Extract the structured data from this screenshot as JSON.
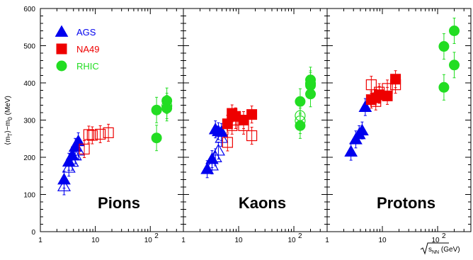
{
  "chart_data": [
    {
      "type": "scatter",
      "panel": "Pions",
      "x_scale": "log",
      "xlim": [
        1,
        400
      ],
      "ylim": [
        0,
        600
      ],
      "ylabel": "⟨m_T⟩−m_0 (MeV)",
      "yticks": [
        0,
        100,
        200,
        300,
        400,
        500,
        600
      ],
      "xticks": [
        "1",
        "10",
        "10²"
      ],
      "series": [
        {
          "name": "AGS",
          "marker": "triangle",
          "filled": true,
          "color": "#0000ee",
          "points": [
            [
              2.7,
              140
            ],
            [
              3.3,
              188
            ],
            [
              3.8,
              205
            ],
            [
              4.3,
              228
            ],
            [
              4.9,
              243
            ]
          ]
        },
        {
          "name": "AGS (open)",
          "marker": "triangle",
          "filled": false,
          "color": "#0000ee",
          "points": [
            [
              2.7,
              122
            ],
            [
              3.3,
              172
            ],
            [
              3.8,
              188
            ],
            [
              4.3,
              205
            ],
            [
              4.9,
              218
            ]
          ]
        },
        {
          "name": "NA49",
          "marker": "square",
          "filled": false,
          "color": "#ee0000",
          "points": [
            [
              6.3,
              222
            ],
            [
              7.6,
              261
            ],
            [
              8.8,
              259
            ],
            [
              12.3,
              262
            ],
            [
              17.3,
              266
            ]
          ]
        },
        {
          "name": "RHIC",
          "marker": "circle",
          "filled": true,
          "color": "#22dd22",
          "points": [
            [
              130,
              252
            ],
            [
              130,
              327
            ],
            [
              200,
              332
            ],
            [
              200,
              352
            ]
          ]
        },
        {
          "name": "RHIC (open)",
          "marker": "circle",
          "filled": false,
          "color": "#22dd22",
          "points": [
            [
              200,
              338
            ]
          ]
        }
      ]
    },
    {
      "type": "scatter",
      "panel": "Kaons",
      "x_scale": "log",
      "xlim": [
        1,
        400
      ],
      "ylim": [
        0,
        600
      ],
      "xticks": [
        "1",
        "10",
        "10²"
      ],
      "series": [
        {
          "name": "AGS",
          "marker": "triangle",
          "filled": true,
          "color": "#0000ee",
          "points": [
            [
              2.7,
              168
            ],
            [
              3.3,
              195
            ],
            [
              3.8,
              275
            ],
            [
              4.3,
              270
            ],
            [
              4.9,
              268
            ]
          ]
        },
        {
          "name": "AGS (open)",
          "marker": "triangle",
          "filled": false,
          "color": "#0000ee",
          "points": [
            [
              3.3,
              178
            ],
            [
              3.8,
              200
            ],
            [
              4.3,
              218
            ],
            [
              4.9,
              252
            ]
          ]
        },
        {
          "name": "NA49",
          "marker": "square",
          "filled": true,
          "color": "#ee0000",
          "points": [
            [
              6.3,
              290
            ],
            [
              7.6,
              318
            ],
            [
              8.8,
              310
            ],
            [
              12.3,
              300
            ],
            [
              17.3,
              315
            ]
          ]
        },
        {
          "name": "NA49 (open)",
          "marker": "square",
          "filled": false,
          "color": "#ee0000",
          "points": [
            [
              6.3,
              240
            ],
            [
              7.6,
              285
            ],
            [
              8.8,
              300
            ],
            [
              12.3,
              285
            ],
            [
              17.3,
              258
            ]
          ]
        },
        {
          "name": "RHIC",
          "marker": "circle",
          "filled": true,
          "color": "#22dd22",
          "points": [
            [
              130,
              350
            ],
            [
              130,
              285
            ],
            [
              200,
              370
            ],
            [
              200,
              393
            ],
            [
              200,
              408
            ]
          ]
        },
        {
          "name": "RHIC (open)",
          "marker": "circle",
          "filled": false,
          "color": "#22dd22",
          "points": [
            [
              130,
              312
            ],
            [
              130,
              298
            ],
            [
              200,
              398
            ]
          ]
        }
      ]
    },
    {
      "type": "scatter",
      "panel": "Protons",
      "x_scale": "log",
      "xlim": [
        1,
        400
      ],
      "ylim": [
        0,
        600
      ],
      "xlabel": "√s_NN (GeV)",
      "xticks": [
        "1",
        "10",
        "10²"
      ],
      "series": [
        {
          "name": "AGS",
          "marker": "triangle",
          "filled": true,
          "color": "#0000ee",
          "points": [
            [
              2.7,
              215
            ],
            [
              3.3,
              248
            ],
            [
              3.8,
              262
            ],
            [
              4.3,
              272
            ],
            [
              4.9,
              335
            ]
          ]
        },
        {
          "name": "NA49",
          "marker": "square",
          "filled": true,
          "color": "#ee0000",
          "points": [
            [
              6.3,
              355
            ],
            [
              7.6,
              360
            ],
            [
              8.8,
              368
            ],
            [
              12.3,
              365
            ],
            [
              17.3,
              410
            ]
          ]
        },
        {
          "name": "NA49 (open)",
          "marker": "square",
          "filled": false,
          "color": "#ee0000",
          "points": [
            [
              6.3,
              395
            ],
            [
              7.6,
              350
            ],
            [
              8.8,
              375
            ],
            [
              12.3,
              385
            ],
            [
              17.3,
              395
            ]
          ]
        },
        {
          "name": "RHIC",
          "marker": "circle",
          "filled": true,
          "color": "#22dd22",
          "points": [
            [
              130,
              388
            ],
            [
              130,
              498
            ],
            [
              200,
              540
            ],
            [
              200,
              448
            ]
          ]
        }
      ]
    }
  ],
  "legend": [
    {
      "label": "AGS",
      "marker": "triangle",
      "color": "#0000ee"
    },
    {
      "label": "NA49",
      "marker": "square",
      "color": "#ee0000"
    },
    {
      "label": "RHIC",
      "marker": "circle",
      "color": "#22dd22"
    }
  ],
  "axis": {
    "ylabel_main": "⟨m",
    "ylabel_sub1": "T",
    "ylabel_mid": "⟩−m",
    "ylabel_sub2": "0",
    "ylabel_unit": " (MeV)",
    "xlabel_root": "s",
    "xlabel_sub": "NN",
    "xlabel_unit": " (GeV)",
    "x_tick_10": "10",
    "x_tick_100_base": "10",
    "x_tick_100_exp": "2"
  }
}
